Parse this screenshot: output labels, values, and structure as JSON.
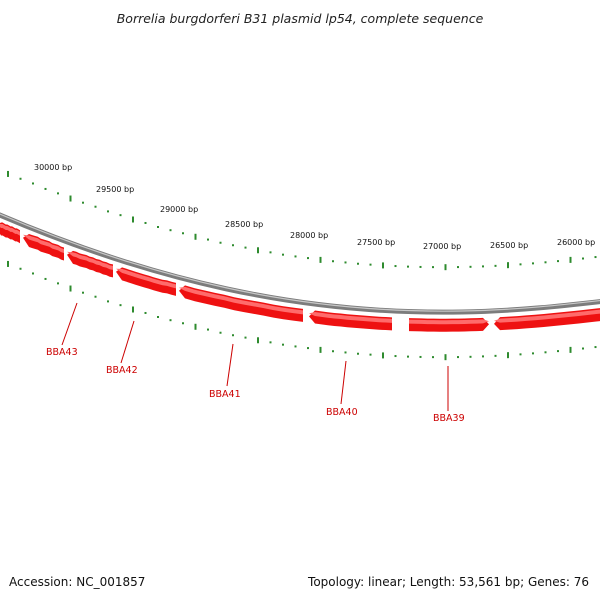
{
  "title": "Borrelia burgdorferi B31 plasmid lp54, complete sequence",
  "accession": "Accession: NC_001857",
  "summary": "Topology: linear; Length: 53,561 bp; Genes: 76",
  "colors": {
    "backbone": "#8a8a8a",
    "gene_fill": "#ee1111",
    "gene_highlight": "#ff6b6b",
    "tick": "#2e8b2e",
    "gene_label": "#cc0000"
  },
  "scale_labels": [
    {
      "text": "30000 bp",
      "bp": 30000
    },
    {
      "text": "29500 bp",
      "bp": 29500
    },
    {
      "text": "29000 bp",
      "bp": 29000
    },
    {
      "text": "28500 bp",
      "bp": 28500
    },
    {
      "text": "28000 bp",
      "bp": 28000
    },
    {
      "text": "27500 bp",
      "bp": 27500
    },
    {
      "text": "27000 bp",
      "bp": 27000
    },
    {
      "text": "26500 bp",
      "bp": 26500
    },
    {
      "text": "26000 bp",
      "bp": 26000
    }
  ],
  "gene_labels": [
    {
      "text": "BBA43"
    },
    {
      "text": "BBA42"
    },
    {
      "text": "BBA41"
    },
    {
      "text": "BBA40"
    },
    {
      "text": "BBA39"
    }
  ]
}
